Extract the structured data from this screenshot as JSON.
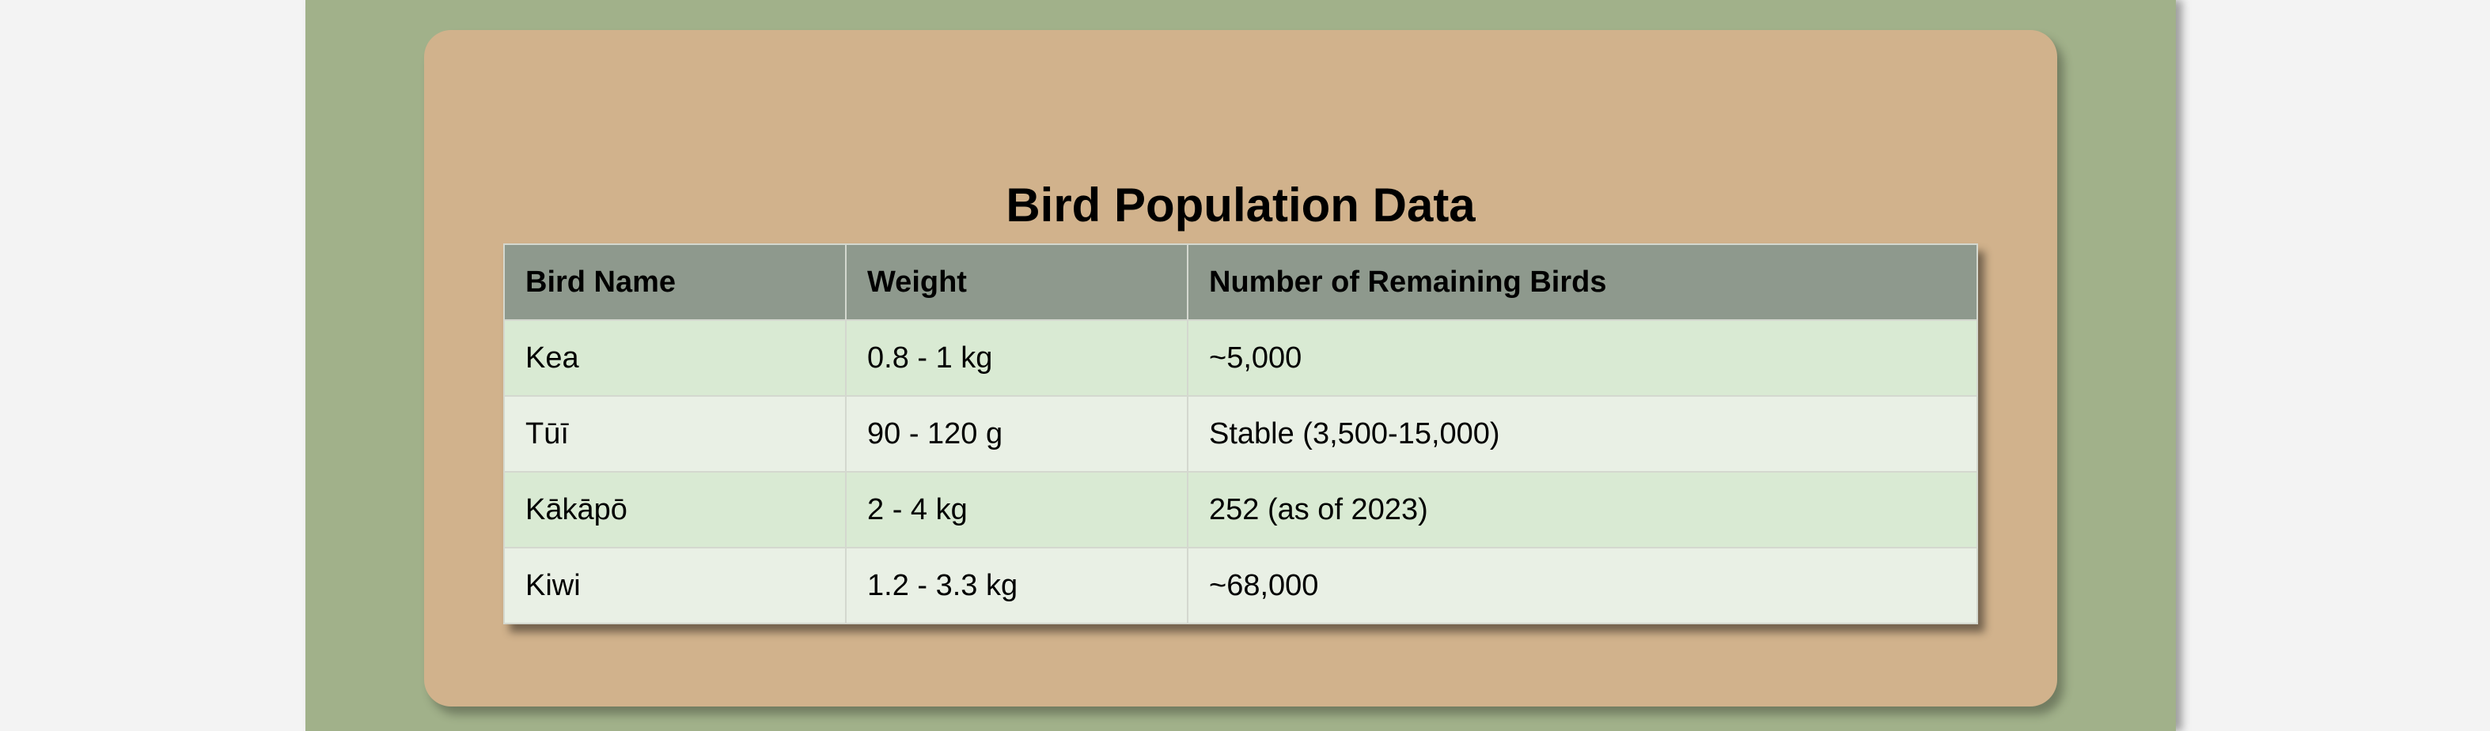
{
  "document": {
    "title": "Bird Population Data"
  },
  "table": {
    "headers": [
      "Bird Name",
      "Weight",
      "Number of Remaining Birds"
    ],
    "rows": [
      [
        "Kea",
        "0.8 - 1 kg",
        "~5,000"
      ],
      [
        "Tūī",
        "90 - 120 g",
        "Stable (3,500-15,000)"
      ],
      [
        "Kākāpō",
        "2 - 4 kg",
        "252 (as of 2023)"
      ],
      [
        "Kiwi",
        "1.2 - 3.3 kg",
        "~68,000"
      ]
    ]
  },
  "colors": {
    "page_background": "#f3f3f3",
    "column_background": "#a1b18a",
    "card_background": "#d1b28c",
    "header_background": "#8e998d",
    "row_odd": "#d9ead3",
    "row_even": "#e9f0e5"
  }
}
